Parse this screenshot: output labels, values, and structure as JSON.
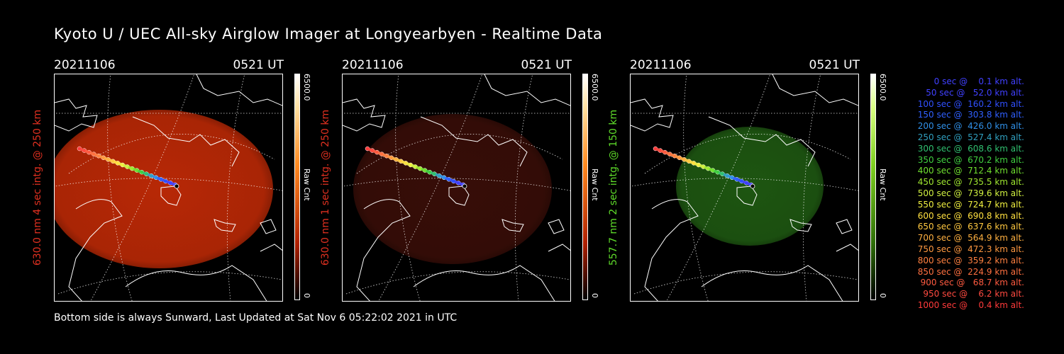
{
  "title": "Kyoto U / UEC All-sky Airglow Imager at Longyearbyen - Realtime Data",
  "footer": "Bottom side is always Sunward, Last Updated at Sat Nov  6 05:22:02 2021 in UTC",
  "panels": [
    {
      "date": "20211106",
      "time": "0521 UT",
      "ylabel": "630.0 nm 4 sec intg. @ 250 km",
      "label_color": "#e03020",
      "colorbar_max": "6500.0",
      "colorbar_label": "Raw Cnt",
      "colorbar_min": "0",
      "colorbar_scheme": "red",
      "glow_color": "#c12a06",
      "glow_opacity": 0.95
    },
    {
      "date": "20211106",
      "time": "0521 UT",
      "ylabel": "630.0 nm 1 sec intg. @ 250 km",
      "label_color": "#e03020",
      "colorbar_max": "6500.0",
      "colorbar_label": "Raw Cnt",
      "colorbar_min": "0",
      "colorbar_scheme": "red",
      "glow_color": "#3a0e08",
      "glow_opacity": 0.95
    },
    {
      "date": "20211106",
      "time": "0521 UT",
      "ylabel": "557.7 nm 2 sec intg. @ 150 km",
      "label_color": "#5fdc2a",
      "colorbar_max": "6500.0",
      "colorbar_label": "Raw Cnt",
      "colorbar_min": "0",
      "colorbar_scheme": "green",
      "glow_color": "#1f5a12",
      "glow_opacity": 0.95
    }
  ],
  "trajectory": [
    {
      "text": "   0 sec @    0.1 km alt.",
      "color": "#4040ff"
    },
    {
      "text": "  50 sec @   52.0 km alt.",
      "color": "#4040ff"
    },
    {
      "text": " 100 sec @  160.2 km alt.",
      "color": "#3050ff"
    },
    {
      "text": " 150 sec @  303.8 km alt.",
      "color": "#3060ff"
    },
    {
      "text": " 200 sec @  426.0 km alt.",
      "color": "#3090e8"
    },
    {
      "text": " 250 sec @  527.4 km alt.",
      "color": "#30a0c0"
    },
    {
      "text": " 300 sec @  608.6 km alt.",
      "color": "#30c070"
    },
    {
      "text": " 350 sec @  670.2 km alt.",
      "color": "#40d040"
    },
    {
      "text": " 400 sec @  712.4 km alt.",
      "color": "#70e030"
    },
    {
      "text": " 450 sec @  735.5 km alt.",
      "color": "#a0e830"
    },
    {
      "text": " 500 sec @  739.6 km alt.",
      "color": "#d0f040"
    },
    {
      "text": " 550 sec @  724.7 km alt.",
      "color": "#f0f040"
    },
    {
      "text": " 600 sec @  690.8 km alt.",
      "color": "#ffe040"
    },
    {
      "text": " 650 sec @  637.6 km alt.",
      "color": "#ffc840"
    },
    {
      "text": " 700 sec @  564.9 km alt.",
      "color": "#ffb040"
    },
    {
      "text": " 750 sec @  472.3 km alt.",
      "color": "#ff9840"
    },
    {
      "text": " 800 sec @  359.2 km alt.",
      "color": "#ff8040"
    },
    {
      "text": " 850 sec @  224.9 km alt.",
      "color": "#ff7040"
    },
    {
      "text": " 900 sec @   68.7 km alt.",
      "color": "#ff5a40"
    },
    {
      "text": " 950 sec @    6.2 km alt.",
      "color": "#ff4a40"
    },
    {
      "text": "1000 sec @    0.4 km alt.",
      "color": "#ff3a3a"
    }
  ]
}
